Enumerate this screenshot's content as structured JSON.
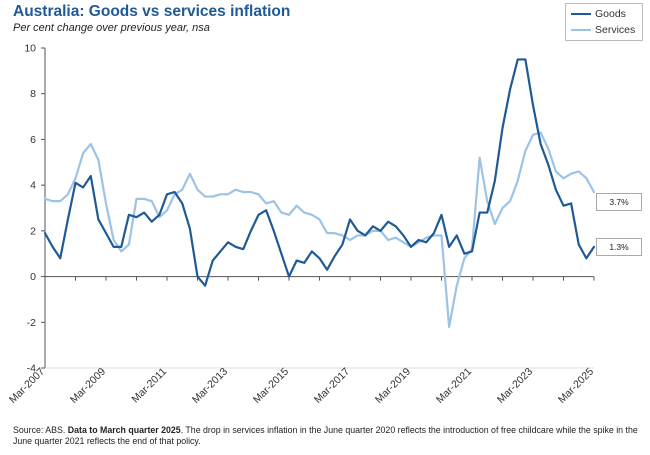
{
  "title": "Australia: Goods vs services inflation",
  "subtitle": "Per cent change over previous year, nsa",
  "source": {
    "prefix": "Source: ABS. ",
    "bold": "Data to March quarter 2025",
    "rest": ". The drop in services inflation in the June quarter 2020 reflects the introduction of free childcare while the spike in the June quarter 2021 reflects the end of that policy."
  },
  "value_tags": {
    "services": "3.7%",
    "goods": "1.3%"
  },
  "colors": {
    "goods": "#1f5a96",
    "services": "#9cc3e6",
    "axis": "#555555"
  },
  "chart_data": {
    "type": "line",
    "title": "Australia: Goods vs services inflation",
    "ylabel": "Per cent change over previous year, nsa",
    "ylim": [
      -4,
      10
    ],
    "yticks": [
      -4,
      -2,
      0,
      2,
      4,
      6,
      8,
      10
    ],
    "x_start": "Mar-2007",
    "x_count": 73,
    "x_tick_labels": [
      "Mar-2007",
      "Mar-2009",
      "Mar-2011",
      "Mar-2013",
      "Mar-2015",
      "Mar-2017",
      "Mar-2019",
      "Mar-2021",
      "Mar-2023",
      "Mar-2025"
    ],
    "x_tick_indices": [
      0,
      8,
      16,
      24,
      32,
      40,
      48,
      56,
      64,
      72
    ],
    "legend": [
      "Goods",
      "Services"
    ],
    "series": [
      {
        "name": "Goods",
        "values": [
          1.9,
          1.3,
          0.8,
          2.5,
          4.1,
          3.9,
          4.4,
          2.5,
          1.9,
          1.3,
          1.3,
          2.7,
          2.6,
          2.8,
          2.4,
          2.7,
          3.6,
          3.7,
          3.2,
          2.1,
          0.0,
          -0.4,
          0.7,
          1.1,
          1.5,
          1.3,
          1.2,
          2.0,
          2.7,
          2.9,
          2.0,
          1.0,
          0.0,
          0.7,
          0.6,
          1.1,
          0.8,
          0.3,
          0.9,
          1.4,
          2.5,
          2.0,
          1.8,
          2.2,
          2.0,
          2.4,
          2.2,
          1.8,
          1.3,
          1.6,
          1.5,
          1.9,
          2.7,
          1.3,
          1.8,
          1.0,
          1.1,
          2.8,
          2.8,
          4.2,
          6.5,
          8.2,
          9.5,
          9.5,
          7.5,
          5.8,
          4.9,
          3.8,
          3.1,
          3.2,
          1.4,
          0.8,
          1.3
        ]
      },
      {
        "name": "Services",
        "values": [
          3.4,
          3.3,
          3.3,
          3.6,
          4.3,
          5.4,
          5.8,
          5.1,
          3.2,
          1.6,
          1.1,
          1.4,
          3.4,
          3.4,
          3.3,
          2.6,
          2.9,
          3.6,
          3.8,
          4.5,
          3.8,
          3.5,
          3.5,
          3.6,
          3.6,
          3.8,
          3.7,
          3.7,
          3.6,
          3.2,
          3.3,
          2.8,
          2.7,
          3.1,
          2.8,
          2.7,
          2.5,
          1.9,
          1.9,
          1.8,
          1.6,
          1.8,
          1.8,
          2.0,
          2.0,
          1.6,
          1.7,
          1.5,
          1.3,
          1.5,
          1.7,
          1.8,
          1.8,
          -2.2,
          -0.4,
          0.8,
          1.2,
          5.2,
          3.3,
          2.3,
          3.0,
          3.3,
          4.2,
          5.5,
          6.2,
          6.3,
          5.6,
          4.6,
          4.3,
          4.5,
          4.6,
          4.3,
          3.7
        ]
      }
    ]
  }
}
